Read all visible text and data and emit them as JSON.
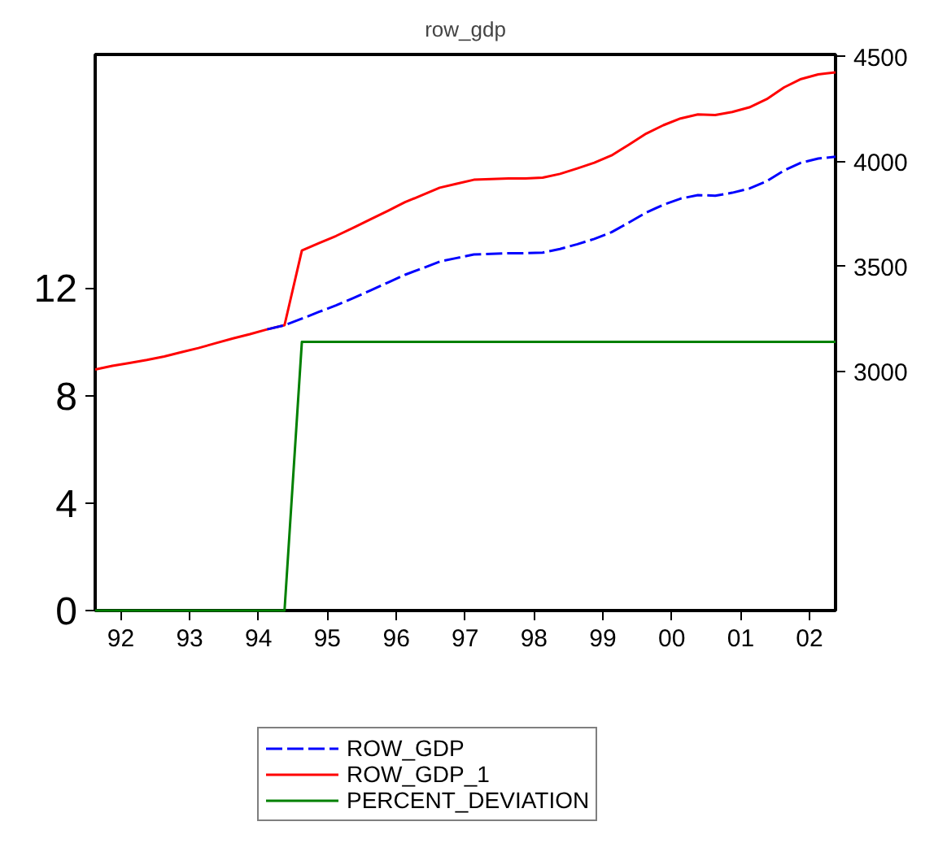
{
  "chart_data": {
    "type": "line",
    "title": "row_gdp",
    "x": [
      "1992-01",
      "1992-04",
      "1992-07",
      "1992-10",
      "1993-01",
      "1993-04",
      "1993-07",
      "1993-10",
      "1994-01",
      "1994-04",
      "1994-07",
      "1994-10",
      "1995-01",
      "1995-04",
      "1995-07",
      "1995-10",
      "1996-01",
      "1996-04",
      "1996-07",
      "1996-10",
      "1997-01",
      "1997-04",
      "1997-07",
      "1997-10",
      "1998-01",
      "1998-04",
      "1998-07",
      "1998-10",
      "1999-01",
      "1999-04",
      "1999-07",
      "1999-10",
      "2000-01",
      "2000-04",
      "2000-07",
      "2000-10",
      "2001-01",
      "2001-04",
      "2001-07",
      "2001-10",
      "2002-01",
      "2002-04",
      "2002-07",
      "2002-10"
    ],
    "series": [
      {
        "name": "ROW_GDP",
        "color": "#0000ff",
        "axis": "y2",
        "line_style": "dashed",
        "values": [
          null,
          null,
          null,
          null,
          null,
          null,
          null,
          null,
          null,
          null,
          3200,
          3220,
          3251,
          3283,
          3314,
          3349,
          3386,
          3423,
          3460,
          3491,
          3523,
          3540,
          3557,
          3560,
          3563,
          3563,
          3566,
          3583,
          3606,
          3631,
          3663,
          3709,
          3757,
          3794,
          3823,
          3840,
          3837,
          3851,
          3871,
          3906,
          3957,
          3994,
          4014,
          4023
        ]
      },
      {
        "name": "ROW_GDP_1",
        "color": "#ff0000",
        "axis": "y2",
        "line_style": "solid",
        "values": [
          3009,
          3026,
          3040,
          3054,
          3071,
          3091,
          3111,
          3134,
          3157,
          3177,
          3200,
          3220,
          3576,
          3611,
          3645,
          3684,
          3725,
          3765,
          3806,
          3840,
          3875,
          3894,
          3913,
          3916,
          3919,
          3919,
          3923,
          3941,
          3967,
          3994,
          4029,
          4080,
          4133,
          4173,
          4205,
          4224,
          4221,
          4236,
          4258,
          4297,
          4353,
          4393,
          4415,
          4425
        ]
      },
      {
        "name": "PERCENT_DEVIATION",
        "color": "#008000",
        "axis": "y",
        "line_style": "solid",
        "values": [
          0,
          0,
          0,
          0,
          0,
          0,
          0,
          0,
          0,
          0,
          0,
          0,
          10,
          10,
          10,
          10,
          10,
          10,
          10,
          10,
          10,
          10,
          10,
          10,
          10,
          10,
          10,
          10,
          10,
          10,
          10,
          10,
          10,
          10,
          10,
          10,
          10,
          10,
          10,
          10,
          10,
          10,
          10,
          10
        ]
      }
    ],
    "xlim": [
      "1992-01",
      "2002-10"
    ],
    "xticks": [
      {
        "value": "1992-05-16",
        "label": "92"
      },
      {
        "value": "1993-05-16",
        "label": "93"
      },
      {
        "value": "1994-05-16",
        "label": "94"
      },
      {
        "value": "1995-05-16",
        "label": "95"
      },
      {
        "value": "1996-05-16",
        "label": "96"
      },
      {
        "value": "1997-05-16",
        "label": "97"
      },
      {
        "value": "1998-05-16",
        "label": "98"
      },
      {
        "value": "1999-05-16",
        "label": "99"
      },
      {
        "value": "2000-05-16",
        "label": "00"
      },
      {
        "value": "2001-05-16",
        "label": "01"
      },
      {
        "value": "2002-05-16",
        "label": "02"
      }
    ],
    "ylim": [
      0,
      20.7
    ],
    "yticks": [
      0,
      4,
      8,
      12
    ],
    "y2lim": [
      1860,
      4510
    ],
    "y2ticks": [
      3000,
      3500,
      4000,
      4500
    ],
    "grid": false,
    "legend": "bottom"
  }
}
